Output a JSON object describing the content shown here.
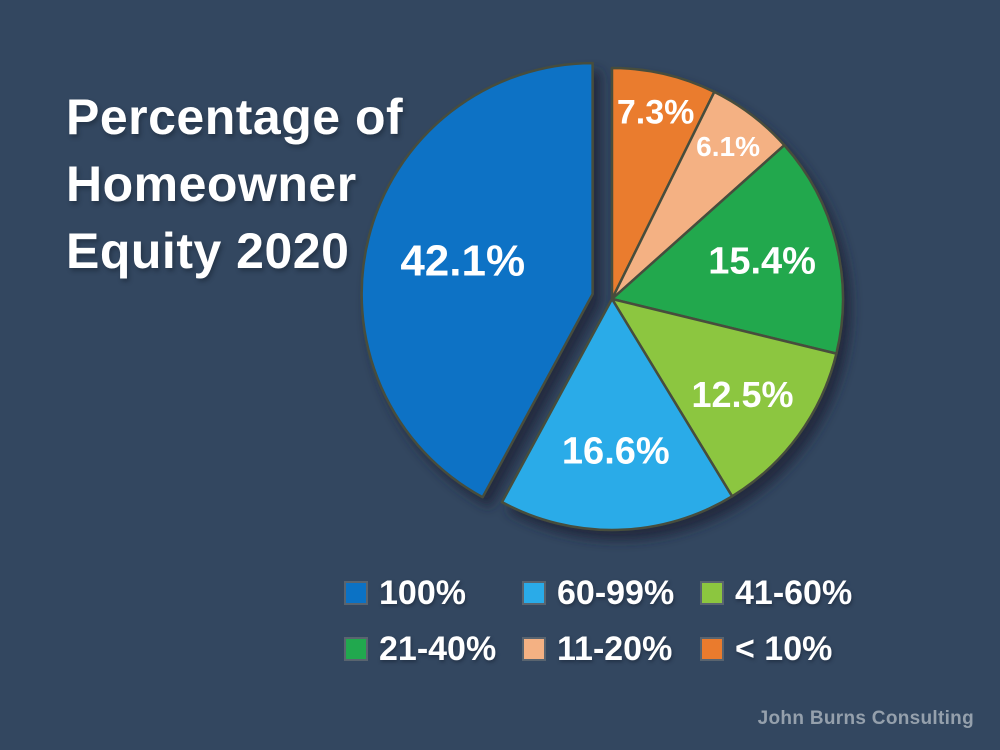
{
  "title": {
    "lines": [
      "Percentage of",
      "Homeowner",
      "Equity 2020"
    ]
  },
  "attribution": "John Burns Consulting",
  "colors": {
    "background": "#334760",
    "slice_stroke": "#474d3c",
    "label_text": "#ffffff",
    "legend_text": "#ffffff",
    "attribution_text": "#95a0ac"
  },
  "chart_data": {
    "type": "pie",
    "title": "Percentage of Homeowner Equity 2020",
    "units": "percent of homeowners",
    "start_angle": "top, clockwise in reverse legend order",
    "legend_position": "bottom, 2 rows x 3 columns",
    "slices": [
      {
        "label": "100%",
        "value": 42.1,
        "value_label": "42.1%",
        "color": "#0b72c5",
        "exploded": true,
        "label_r": 0.58,
        "label_size": 44
      },
      {
        "label": "60-99%",
        "value": 16.6,
        "value_label": "16.6%",
        "color": "#2aabe8",
        "exploded": false,
        "label_r": 0.66,
        "label_size": 38
      },
      {
        "label": "41-60%",
        "value": 12.5,
        "value_label": "12.5%",
        "color": "#8cc63f",
        "exploded": false,
        "label_r": 0.7,
        "label_size": 36
      },
      {
        "label": "21-40%",
        "value": 15.4,
        "value_label": "15.4%",
        "color": "#21a84e",
        "exploded": false,
        "label_r": 0.67,
        "label_size": 38
      },
      {
        "label": "11-20%",
        "value": 6.1,
        "value_label": "6.1%",
        "color": "#f4b183",
        "exploded": false,
        "label_r": 0.83,
        "label_size": 28
      },
      {
        "label": "< 10%",
        "value": 7.3,
        "value_label": "7.3%",
        "color": "#ea7b2d",
        "exploded": false,
        "label_r": 0.83,
        "label_size": 34
      }
    ]
  }
}
